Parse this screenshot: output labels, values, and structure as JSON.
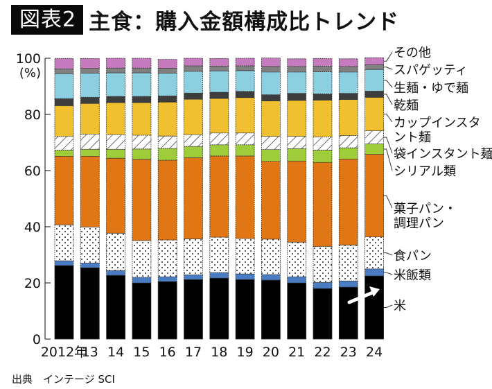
{
  "header": {
    "badge": "図表2",
    "title": "主食：購入金額構成比トレンド"
  },
  "source": "出典　インテージ SCI",
  "chart_data": {
    "type": "bar",
    "stacked": true,
    "normalized": true,
    "title": "主食：購入金額構成比トレンド",
    "xlabel": "",
    "ylabel": "(%)",
    "ylim": [
      0,
      100
    ],
    "yticks": [
      0,
      20,
      40,
      60,
      80,
      100
    ],
    "ytick_labels": [
      "0",
      "20",
      "40",
      "60",
      "80",
      "100"
    ],
    "y_unit_label": "(%)",
    "categories": [
      "2012年",
      "13",
      "14",
      "15",
      "16",
      "17",
      "18",
      "19",
      "20",
      "21",
      "22",
      "23",
      "24"
    ],
    "legend_placement": "right",
    "series": [
      {
        "name": "米",
        "color": "#000000",
        "pattern": "solid",
        "values": [
          26.2,
          25.4,
          22.7,
          20.0,
          20.5,
          21.2,
          21.7,
          21.2,
          21.0,
          20.0,
          18.0,
          18.5,
          22.5
        ]
      },
      {
        "name": "米飯類",
        "color": "#4a7cc4",
        "pattern": "solid",
        "values": [
          1.7,
          1.7,
          1.7,
          2.0,
          1.7,
          1.7,
          2.0,
          2.0,
          2.0,
          2.2,
          2.2,
          2.2,
          2.5
        ]
      },
      {
        "name": "食パン",
        "color": "#ffffff",
        "pattern": "dots",
        "values": [
          12.8,
          12.8,
          13.3,
          13.1,
          13.1,
          12.8,
          12.6,
          12.6,
          12.6,
          12.3,
          12.8,
          12.8,
          11.4
        ]
      },
      {
        "name": "菓子パン・調理パン",
        "color": "#e07614",
        "pattern": "solid",
        "values": [
          24.4,
          25.2,
          26.7,
          28.9,
          28.4,
          28.9,
          28.9,
          29.4,
          27.7,
          28.9,
          29.9,
          30.6,
          29.4
        ]
      },
      {
        "name": "シリアル類",
        "color": "#9fcc3b",
        "pattern": "solid",
        "values": [
          2.2,
          2.5,
          3.2,
          3.7,
          4.2,
          4.0,
          4.0,
          4.0,
          4.2,
          4.4,
          4.4,
          4.0,
          3.7
        ]
      },
      {
        "name": "袋インスタント麺",
        "color": "#ffffff",
        "pattern": "hatch",
        "values": [
          4.9,
          5.4,
          5.2,
          4.9,
          4.4,
          4.2,
          4.2,
          4.2,
          4.7,
          4.4,
          4.7,
          4.4,
          4.7
        ]
      },
      {
        "name": "カップインスタント麺",
        "color": "#f0c030",
        "pattern": "solid",
        "values": [
          10.9,
          10.9,
          11.4,
          11.6,
          12.1,
          12.6,
          12.3,
          12.6,
          12.6,
          12.8,
          13.1,
          12.8,
          11.9
        ]
      },
      {
        "name": "乾麺",
        "color": "#3d3d3d",
        "pattern": "solid",
        "values": [
          2.5,
          2.2,
          2.2,
          2.2,
          2.2,
          2.2,
          2.2,
          2.2,
          2.2,
          2.5,
          2.2,
          2.2,
          2.2
        ]
      },
      {
        "name": "生麺・ゆで麺",
        "color": "#8ccfe0",
        "pattern": "solid",
        "values": [
          8.9,
          8.6,
          8.4,
          8.4,
          8.1,
          7.7,
          7.6,
          7.4,
          8.1,
          7.6,
          7.9,
          7.6,
          7.7
        ]
      },
      {
        "name": "スパゲッティ",
        "color": "#808080",
        "pattern": "solid",
        "values": [
          1.7,
          1.7,
          1.7,
          1.7,
          1.7,
          2.0,
          1.7,
          1.7,
          2.0,
          2.0,
          2.0,
          2.0,
          1.7
        ]
      },
      {
        "name": "その他",
        "color": "#c77bbf",
        "pattern": "solid",
        "values": [
          3.7,
          3.5,
          3.5,
          3.5,
          3.2,
          2.7,
          2.7,
          2.7,
          3.0,
          2.7,
          2.7,
          2.7,
          2.5
        ]
      }
    ],
    "legend_labels": [
      {
        "series": "その他",
        "lines": [
          "その他"
        ]
      },
      {
        "series": "スパゲッティ",
        "lines": [
          "スパゲッティ"
        ]
      },
      {
        "series": "生麺・ゆで麺",
        "lines": [
          "生麺・ゆで麺"
        ]
      },
      {
        "series": "乾麺",
        "lines": [
          "乾麺"
        ]
      },
      {
        "series": "カップインスタント麺",
        "lines": [
          "カップインスタ",
          "ント麺"
        ]
      },
      {
        "series": "袋インスタント麺",
        "lines": [
          "袋インスタント麺"
        ]
      },
      {
        "series": "シリアル類",
        "lines": [
          "シリアル類"
        ]
      },
      {
        "series": "菓子パン・調理パン",
        "lines": [
          "菓子パン・",
          "調理パン"
        ]
      },
      {
        "series": "食パン",
        "lines": [
          "食パン"
        ]
      },
      {
        "series": "米飯類",
        "lines": [
          "米飯類"
        ]
      },
      {
        "series": "米",
        "lines": [
          "米"
        ]
      }
    ],
    "annotations": [
      {
        "type": "arrow",
        "description": "upward trend arrow on 米 at 2023–2024",
        "from_category": "23",
        "to_category": "24",
        "color": "#ffffff"
      }
    ]
  }
}
